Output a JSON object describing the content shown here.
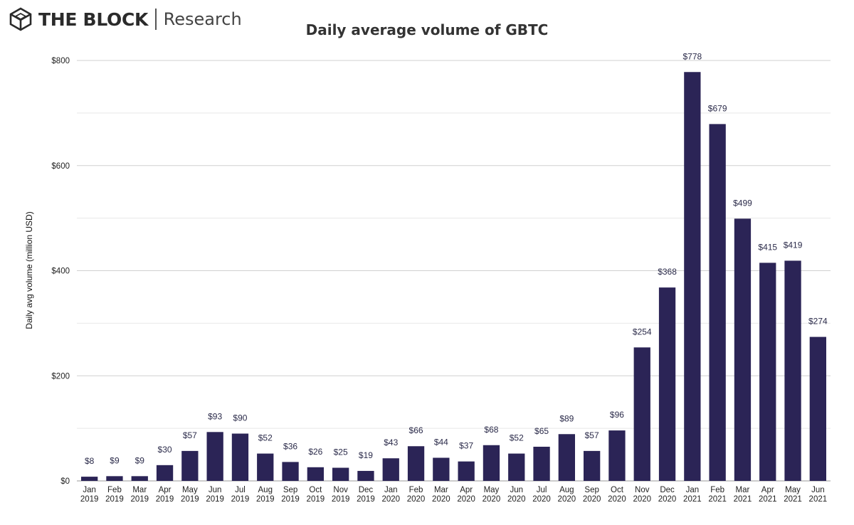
{
  "brand": {
    "name": "THE BLOCK",
    "sub": "Research",
    "logo_icon": "cube-logo-icon"
  },
  "chart_data": {
    "type": "bar",
    "title": "Daily average volume of GBTC",
    "xlabel": "",
    "ylabel": "Daily avg volume (million USD)",
    "ylim": [
      0,
      800
    ],
    "yticks": [
      "$0",
      "$200",
      "$400",
      "$600",
      "$800"
    ],
    "ytick_values": [
      0,
      200,
      400,
      600,
      800
    ],
    "grid": true,
    "bar_color": "#2b2456",
    "categories": [
      [
        "Jan",
        "2019"
      ],
      [
        "Feb",
        "2019"
      ],
      [
        "Mar",
        "2019"
      ],
      [
        "Apr",
        "2019"
      ],
      [
        "May",
        "2019"
      ],
      [
        "Jun",
        "2019"
      ],
      [
        "Jul",
        "2019"
      ],
      [
        "Aug",
        "2019"
      ],
      [
        "Sep",
        "2019"
      ],
      [
        "Oct",
        "2019"
      ],
      [
        "Nov",
        "2019"
      ],
      [
        "Dec",
        "2019"
      ],
      [
        "Jan",
        "2020"
      ],
      [
        "Feb",
        "2020"
      ],
      [
        "Mar",
        "2020"
      ],
      [
        "Apr",
        "2020"
      ],
      [
        "May",
        "2020"
      ],
      [
        "Jun",
        "2020"
      ],
      [
        "Jul",
        "2020"
      ],
      [
        "Aug",
        "2020"
      ],
      [
        "Sep",
        "2020"
      ],
      [
        "Oct",
        "2020"
      ],
      [
        "Nov",
        "2020"
      ],
      [
        "Dec",
        "2020"
      ],
      [
        "Jan",
        "2021"
      ],
      [
        "Feb",
        "2021"
      ],
      [
        "Mar",
        "2021"
      ],
      [
        "Apr",
        "2021"
      ],
      [
        "May",
        "2021"
      ],
      [
        "Jun",
        "2021"
      ]
    ],
    "values": [
      8,
      9,
      9,
      30,
      57,
      93,
      90,
      52,
      36,
      26,
      25,
      19,
      43,
      66,
      44,
      37,
      68,
      52,
      65,
      89,
      57,
      96,
      254,
      368,
      778,
      679,
      499,
      415,
      419,
      274
    ],
    "value_labels": [
      "$8",
      "$9",
      "$9",
      "$30",
      "$57",
      "$93",
      "$90",
      "$52",
      "$36",
      "$26",
      "$25",
      "$19",
      "$43",
      "$66",
      "$44",
      "$37",
      "$68",
      "$52",
      "$65",
      "$89",
      "$57",
      "$96",
      "$254",
      "$368",
      "$778",
      "$679",
      "$499",
      "$415",
      "$419",
      "$274"
    ]
  }
}
